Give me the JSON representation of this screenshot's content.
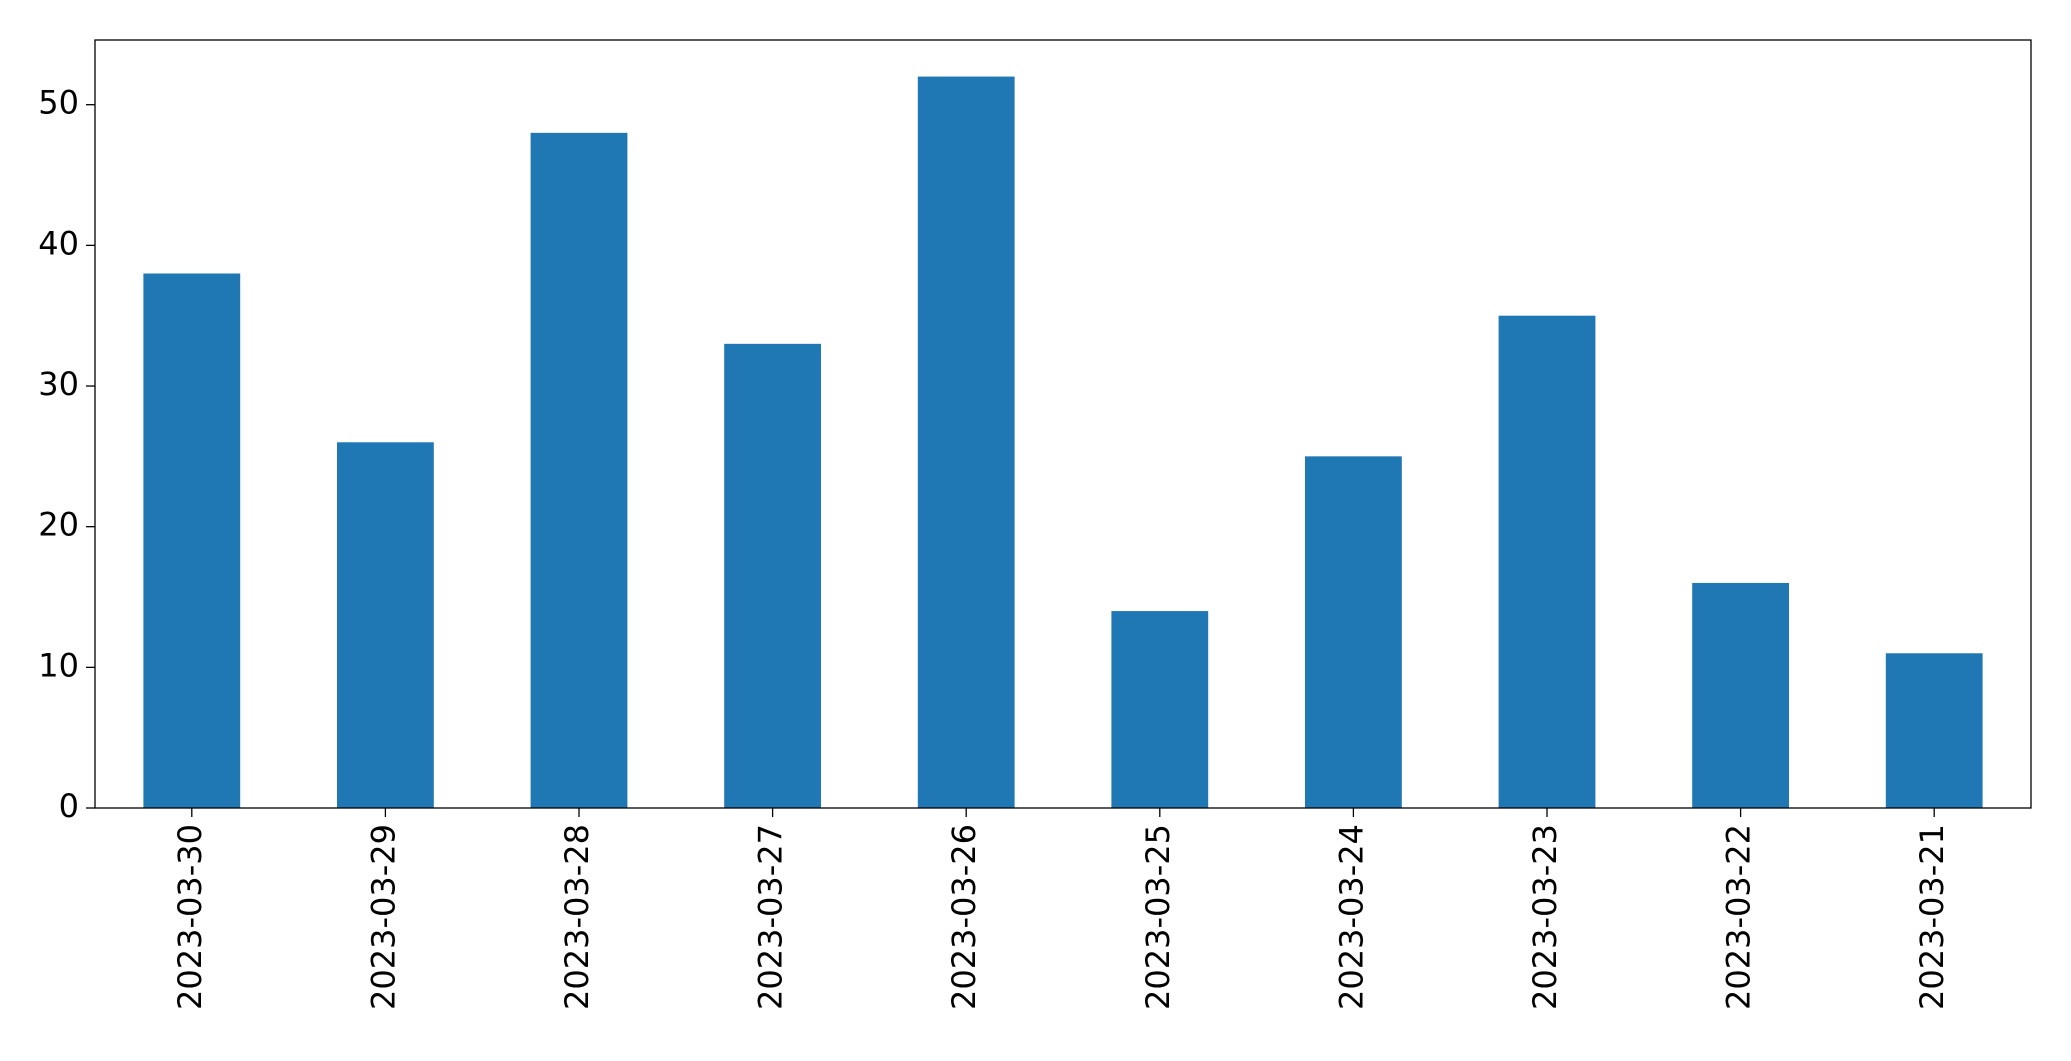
{
  "chart_data": {
    "type": "bar",
    "categories": [
      "2023-03-30",
      "2023-03-29",
      "2023-03-28",
      "2023-03-27",
      "2023-03-26",
      "2023-03-25",
      "2023-03-24",
      "2023-03-23",
      "2023-03-22",
      "2023-03-21"
    ],
    "values": [
      38,
      26,
      48,
      33,
      52,
      14,
      25,
      35,
      16,
      11
    ],
    "color": "#1f77b4",
    "ylim": [
      0,
      54.6
    ],
    "yticks": [
      0,
      10,
      20,
      30,
      40,
      50
    ],
    "grid": false
  }
}
